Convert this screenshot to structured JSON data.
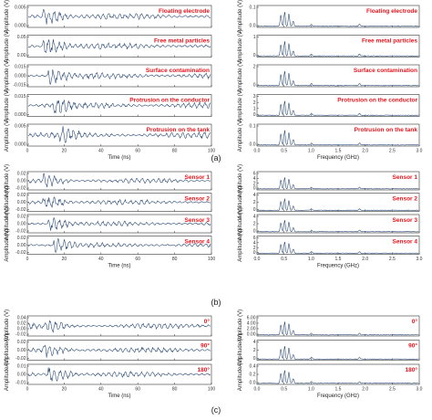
{
  "colors": {
    "trace": "#1c3f6e",
    "annotation": "#e8141b",
    "axis": "#333333"
  },
  "chart_data": [
    {
      "type": "line",
      "part": "(a)",
      "xlabel": "Time (ns)",
      "ylabel": "Amplitude (V)",
      "xlim": [
        0,
        100
      ],
      "xticks": [
        "0",
        "20",
        "40",
        "60",
        "80",
        "100"
      ],
      "series": [
        {
          "name": "Floating electrode",
          "yticks": [
            "0.000",
            "0.005"
          ]
        },
        {
          "name": "Free metal particles",
          "yticks": [
            "0.00",
            "0.05"
          ]
        },
        {
          "name": "Surface contamination",
          "yticks": [
            "-0.015",
            "0.000",
            "0.015"
          ]
        },
        {
          "name": "Protrusion on the conductor",
          "yticks": [
            "0.000",
            "0.015"
          ]
        },
        {
          "name": "Protrusion on the tank",
          "yticks": [
            "0.000",
            "0.005"
          ]
        }
      ]
    },
    {
      "type": "line",
      "part": "(a)",
      "xlabel": "Frequency (GHz)",
      "ylabel": "Amplitude (V)",
      "xlim": [
        0,
        3.0
      ],
      "xticks": [
        "0.0",
        "0.5",
        "1.0",
        "1.5",
        "2.0",
        "2.5",
        "3.0"
      ],
      "series": [
        {
          "name": "Floating electrode",
          "yticks": [
            "0.0",
            "0.1"
          ]
        },
        {
          "name": "Free metal particles",
          "yticks": [
            "0",
            "1"
          ]
        },
        {
          "name": "Surface contamination",
          "yticks": [
            "0",
            "2"
          ]
        },
        {
          "name": "Protrusion on the conductor",
          "yticks": [
            "0",
            "1",
            "2",
            "3"
          ]
        },
        {
          "name": "Protrusion on the tank",
          "yticks": [
            "0.0",
            "0.1"
          ]
        }
      ]
    },
    {
      "type": "line",
      "part": "(b)",
      "xlabel": "Time (ns)",
      "ylabel": "Amplitude (V)",
      "xlim": [
        0,
        100
      ],
      "xticks": [
        "0",
        "20",
        "40",
        "60",
        "80",
        "100"
      ],
      "series": [
        {
          "name": "Sensor 1",
          "yticks": [
            "-0.02",
            "0.00",
            "0.02"
          ]
        },
        {
          "name": "Sensor 2",
          "yticks": [
            "-0.02",
            "0.00",
            "0.02"
          ]
        },
        {
          "name": "Sensor 3",
          "yticks": [
            "-0.02",
            "0.00",
            "0.02"
          ]
        },
        {
          "name": "Sensor 4",
          "yticks": [
            "-0.02",
            "0.00",
            "0.02"
          ]
        }
      ]
    },
    {
      "type": "line",
      "part": "(b)",
      "xlabel": "Frequency (GHz)",
      "ylabel": "Amplitude (V)",
      "xlim": [
        0,
        3.0
      ],
      "xticks": [
        "0.0",
        "0.5",
        "1.0",
        "1.5",
        "2.0",
        "2.5",
        "3.0"
      ],
      "series": [
        {
          "name": "Sensor 1",
          "yticks": [
            "0",
            "2",
            "4",
            "6"
          ]
        },
        {
          "name": "Sensor 2",
          "yticks": [
            "0",
            "2",
            "4"
          ]
        },
        {
          "name": "Sensor 3",
          "yticks": [
            "0",
            "2",
            "4"
          ]
        },
        {
          "name": "Sensor 4",
          "yticks": [
            "0",
            "2",
            "4",
            "6"
          ]
        }
      ]
    },
    {
      "type": "line",
      "part": "(c)",
      "xlabel": "Time (ns)",
      "ylabel": "Amplitude (V)",
      "xlim": [
        0,
        100
      ],
      "xticks": [
        "0",
        "20",
        "40",
        "60",
        "80",
        "100"
      ],
      "series": [
        {
          "name": "0°",
          "yticks": [
            "-0.02",
            "0.00",
            "0.02",
            "0.04"
          ]
        },
        {
          "name": "90°",
          "yticks": [
            "-0.02",
            "0.00",
            "0.02"
          ]
        },
        {
          "name": "180°",
          "yticks": [
            "-0.01",
            "0.00",
            "0.01"
          ]
        }
      ]
    },
    {
      "type": "line",
      "part": "(c)",
      "xlabel": "Frequency (GHz)",
      "ylabel": "Amplitude (V)",
      "xlim": [
        0,
        3.0
      ],
      "xticks": [
        "0.0",
        "0.5",
        "1.0",
        "1.5",
        "2.0",
        "2.5",
        "3.0"
      ],
      "series": [
        {
          "name": "0°",
          "yticks": [
            "0.00",
            "2.00",
            "4.00",
            "6.00"
          ]
        },
        {
          "name": "90°",
          "yticks": [
            "0",
            "2",
            "4"
          ]
        },
        {
          "name": "180°",
          "yticks": [
            "0.0",
            "0.2",
            "0.4"
          ]
        }
      ]
    }
  ]
}
